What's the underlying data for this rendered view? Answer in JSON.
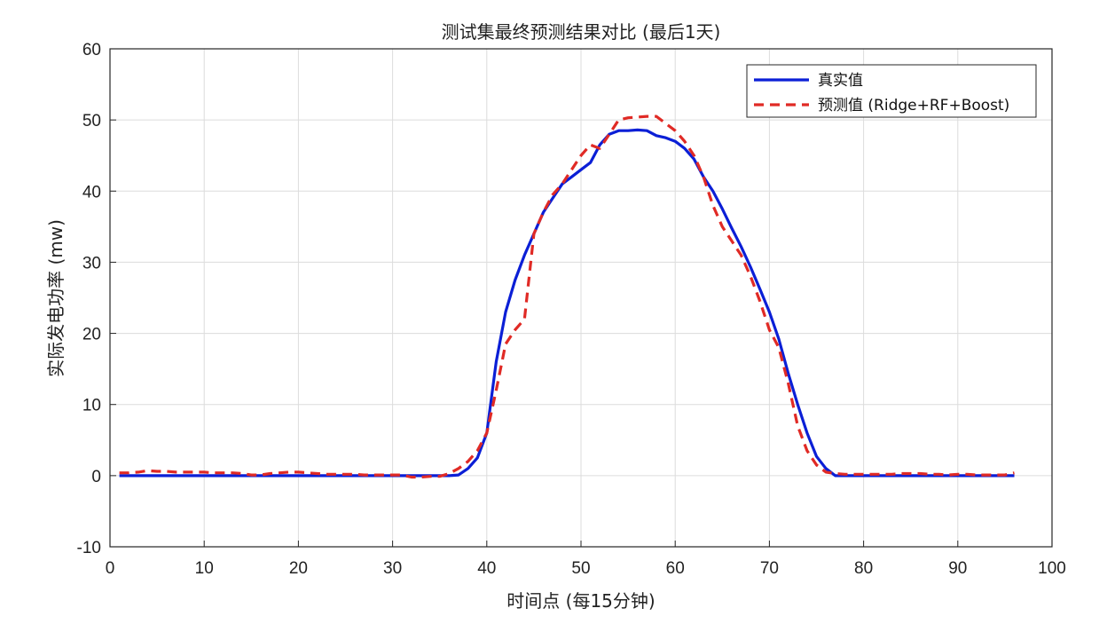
{
  "chart_data": {
    "type": "line",
    "title": "测试集最终预测结果对比 (最后1天)",
    "xlabel": "时间点 (每15分钟)",
    "ylabel": "实际发电功率 (mw)",
    "xlim": [
      0,
      100
    ],
    "ylim": [
      -10,
      60
    ],
    "xticks": [
      0,
      10,
      20,
      30,
      40,
      50,
      60,
      70,
      80,
      90,
      100
    ],
    "yticks": [
      -10,
      0,
      10,
      20,
      30,
      40,
      50,
      60
    ],
    "grid": true,
    "legend_position": "top-right",
    "series": [
      {
        "name": "真实值",
        "color": "#0b1fd6",
        "style": "solid",
        "x": [
          1,
          2,
          3,
          4,
          5,
          6,
          7,
          8,
          9,
          10,
          11,
          12,
          13,
          14,
          15,
          16,
          17,
          18,
          19,
          20,
          21,
          22,
          23,
          24,
          25,
          26,
          27,
          28,
          29,
          30,
          31,
          32,
          33,
          34,
          35,
          36,
          37,
          38,
          39,
          40,
          41,
          42,
          43,
          44,
          45,
          46,
          47,
          48,
          49,
          50,
          51,
          52,
          53,
          54,
          55,
          56,
          57,
          58,
          59,
          60,
          61,
          62,
          63,
          64,
          65,
          66,
          67,
          68,
          69,
          70,
          71,
          72,
          73,
          74,
          75,
          76,
          77,
          78,
          79,
          80,
          81,
          82,
          83,
          84,
          85,
          86,
          87,
          88,
          89,
          90,
          91,
          92,
          93,
          94,
          95,
          96
        ],
        "y": [
          0,
          0,
          0,
          0,
          0,
          0,
          0,
          0,
          0,
          0,
          0,
          0,
          0,
          0,
          0,
          0,
          0,
          0,
          0,
          0,
          0,
          0,
          0,
          0,
          0,
          0,
          0,
          0,
          0,
          0,
          0,
          0,
          0,
          0,
          0,
          0,
          0.1,
          1,
          2.5,
          6,
          16,
          23,
          27.5,
          31,
          34,
          37,
          39,
          41,
          42,
          43,
          44,
          46.5,
          48,
          48.5,
          48.5,
          48.6,
          48.5,
          47.8,
          47.5,
          47,
          46,
          44.5,
          42,
          40,
          37.5,
          34.8,
          32.2,
          29.3,
          26.2,
          23,
          19.2,
          14.4,
          10,
          6,
          2.7,
          1,
          0,
          0,
          0,
          0,
          0,
          0,
          0,
          0,
          0,
          0,
          0,
          0,
          0,
          0,
          0,
          0,
          0,
          0,
          0,
          0
        ]
      },
      {
        "name": "预测值 (Ridge+RF+Boost)",
        "color": "#e02a25",
        "style": "dashed",
        "x": [
          1,
          2,
          3,
          4,
          5,
          6,
          7,
          8,
          9,
          10,
          11,
          12,
          13,
          14,
          15,
          16,
          17,
          18,
          19,
          20,
          21,
          22,
          23,
          24,
          25,
          26,
          27,
          28,
          29,
          30,
          31,
          32,
          33,
          34,
          35,
          36,
          37,
          38,
          39,
          40,
          41,
          42,
          43,
          44,
          45,
          46,
          47,
          48,
          49,
          50,
          51,
          52,
          53,
          54,
          55,
          56,
          57,
          58,
          59,
          60,
          61,
          62,
          63,
          64,
          65,
          66,
          67,
          68,
          69,
          70,
          71,
          72,
          73,
          74,
          75,
          76,
          77,
          78,
          79,
          80,
          81,
          82,
          83,
          84,
          85,
          86,
          87,
          88,
          89,
          90,
          91,
          92,
          93,
          94,
          95,
          96
        ],
        "y": [
          0.4,
          0.4,
          0.5,
          0.7,
          0.6,
          0.6,
          0.5,
          0.5,
          0.5,
          0.5,
          0.4,
          0.4,
          0.4,
          0.3,
          0.1,
          0.1,
          0.3,
          0.4,
          0.5,
          0.5,
          0.4,
          0.3,
          0.2,
          0.2,
          0.2,
          0.2,
          0.1,
          0.1,
          0.1,
          0.1,
          0.1,
          -0.2,
          -0.2,
          -0.1,
          -0.1,
          0.3,
          1,
          2,
          3.5,
          6,
          12,
          18.5,
          20.5,
          22,
          34,
          37,
          39.5,
          41,
          43,
          45,
          46.5,
          46,
          48,
          50,
          50.3,
          50.4,
          50.5,
          50.5,
          49.5,
          48.5,
          47,
          45,
          42,
          38,
          35,
          33,
          31,
          28,
          24.5,
          20.5,
          18,
          13,
          7,
          3.5,
          1.5,
          0.5,
          0.3,
          0.2,
          0.2,
          0.2,
          0.2,
          0.2,
          0.2,
          0.3,
          0.3,
          0.3,
          0.2,
          0.2,
          0.1,
          0.2,
          0.2,
          0.1,
          0.1,
          0.1,
          0.1,
          0.4
        ]
      }
    ]
  }
}
